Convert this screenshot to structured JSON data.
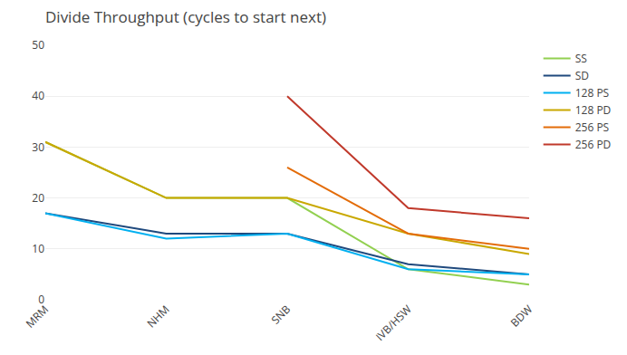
{
  "chart_data": {
    "type": "line",
    "title": "Divide Throughput (cycles to start next)",
    "categories": [
      "MRM",
      "NHM",
      "SNB",
      "IVB/HSW",
      "BDW"
    ],
    "series": [
      {
        "name": "SS",
        "color": "#92D050",
        "values": [
          31,
          20,
          20,
          6,
          3
        ]
      },
      {
        "name": "SD",
        "color": "#1F497D",
        "values": [
          17,
          13,
          13,
          7,
          5
        ]
      },
      {
        "name": "128 PS",
        "color": "#00B0F0",
        "values": [
          17,
          12,
          13,
          6,
          5
        ]
      },
      {
        "name": "128 PD",
        "color": "#C9A800",
        "values": [
          31,
          20,
          20,
          13,
          9
        ]
      },
      {
        "name": "256 PS",
        "color": "#E36C09",
        "values": [
          null,
          null,
          26,
          13,
          10
        ]
      },
      {
        "name": "256 PD",
        "color": "#C0392B",
        "values": [
          null,
          null,
          40,
          18,
          16
        ]
      }
    ],
    "ylim": [
      0,
      50
    ],
    "yticks": [
      0,
      10,
      20,
      30,
      40,
      50
    ],
    "grid": true,
    "legend": "right"
  }
}
